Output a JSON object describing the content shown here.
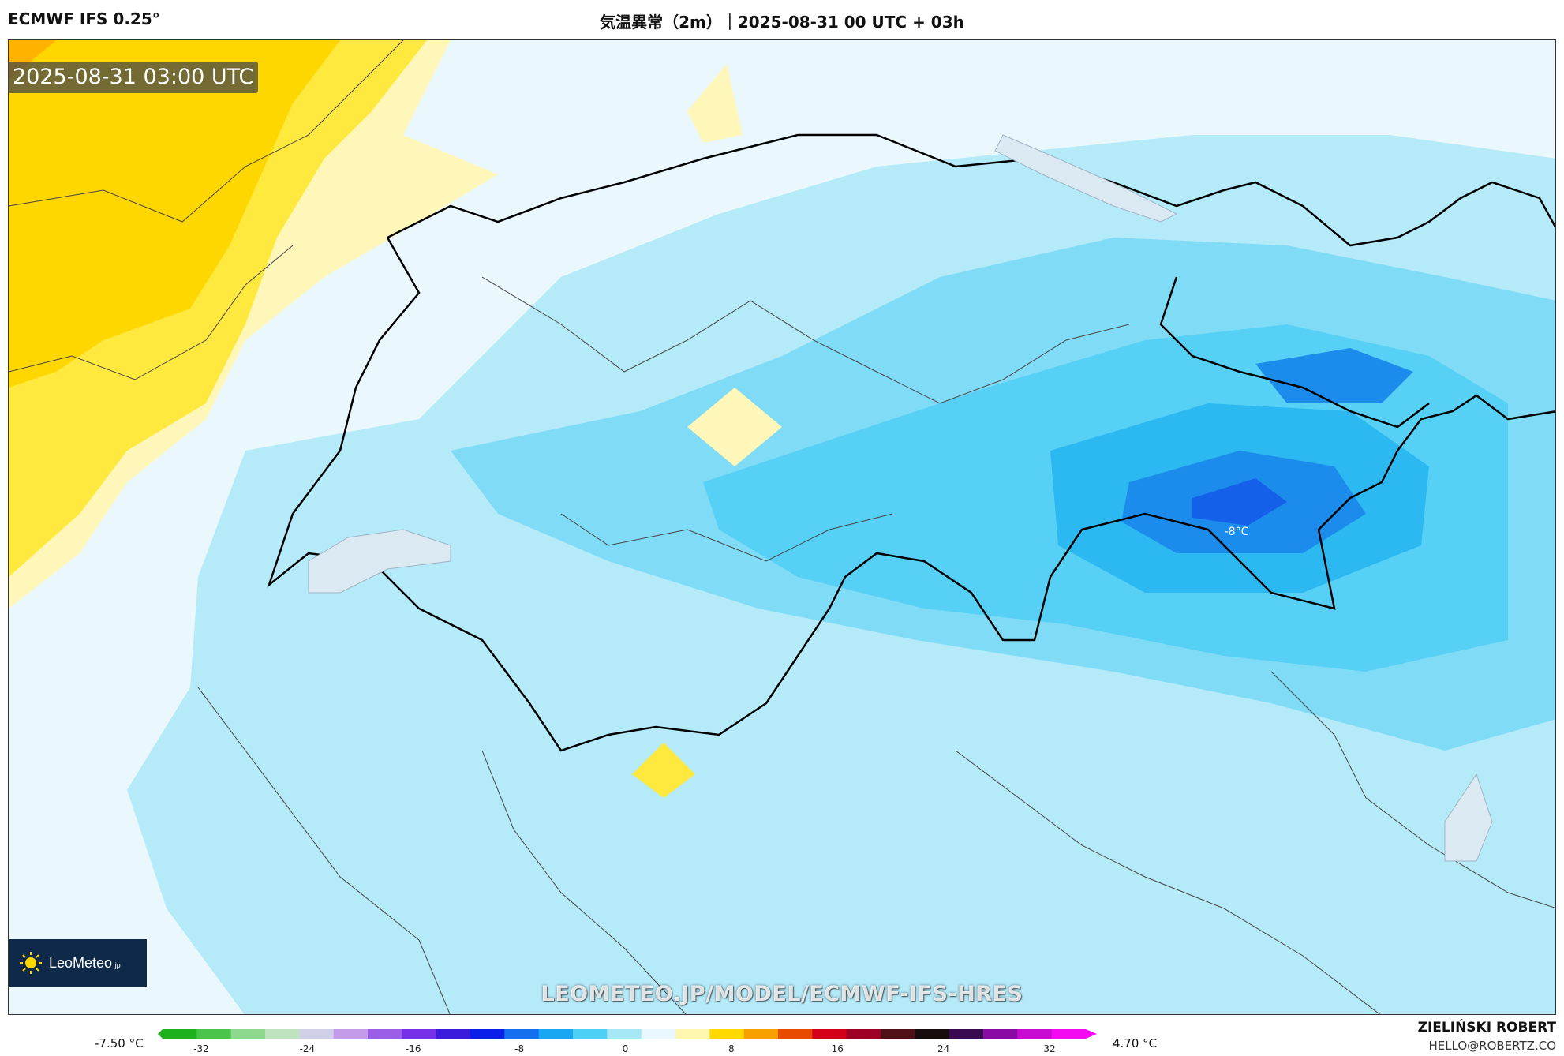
{
  "header": {
    "model": "ECMWF IFS 0.25°",
    "title": "気温異常（2m）｜2025-08-31 00 UTC + 03h"
  },
  "map": {
    "timestamp": "2025-08-31 03:00 UTC",
    "min_label": "-8°C",
    "watermark": "LEOMETEO.JP/MODEL/ECMWF-IFS-HRES",
    "logo_text": "LeoMeteo",
    "logo_tld": ".jp"
  },
  "colorbar": {
    "min_value": "-7.50 °C",
    "max_value": "4.70 °C",
    "ticks": [
      "-32",
      "-24",
      "-16",
      "-8",
      "0",
      "8",
      "16",
      "24",
      "32"
    ],
    "colors": [
      "#1db21d",
      "#4ac44a",
      "#8ed88e",
      "#bfe3bf",
      "#cfcfe8",
      "#c49be8",
      "#9b5ee6",
      "#7530e8",
      "#3b1cdc",
      "#0a20e8",
      "#1470ee",
      "#19a6f2",
      "#4cd0f5",
      "#a7e8f7",
      "#e8f8fc",
      "#fff6b0",
      "#ffd900",
      "#f8a000",
      "#e84a00",
      "#d4001a",
      "#9d0024",
      "#501018",
      "#180b0e",
      "#3a0a50",
      "#8a0aa6",
      "#c80ad2",
      "#f40af0"
    ]
  },
  "credit": {
    "name": "ZIELIŃSKI ROBERT",
    "email": "HELLO@ROBERTZ.CO"
  },
  "palette": {
    "ocean_light": "#eaf8fe",
    "cyan_1": "#b5eaf9",
    "cyan_2": "#80dcf6",
    "cyan_3": "#56d1f5",
    "blue_4": "#2cb8f0",
    "blue_5": "#1c8cec",
    "blue_6": "#1560e8",
    "yellow_1": "#fff7b9",
    "yellow_2": "#ffe93e",
    "yellow_3": "#ffd700",
    "orange": "#ffb300"
  }
}
